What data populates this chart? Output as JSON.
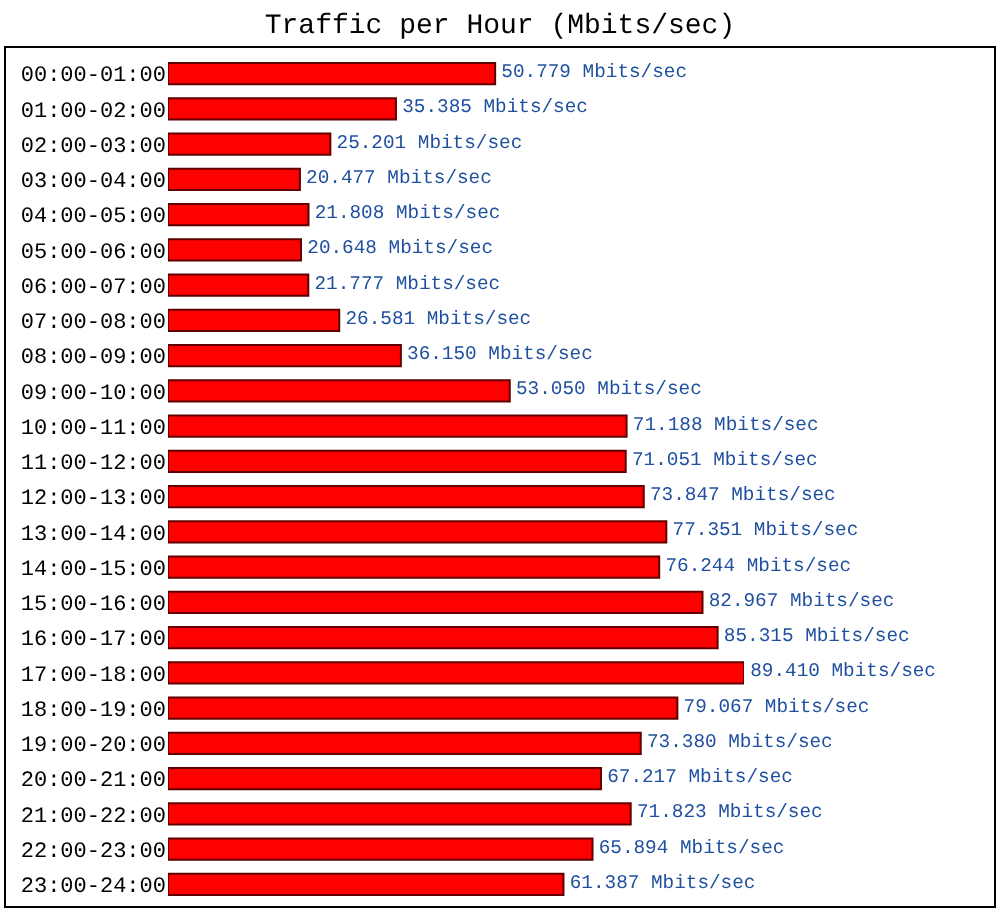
{
  "chart_data": {
    "type": "bar",
    "orientation": "horizontal",
    "title": "Traffic per Hour (Mbits/sec)",
    "tick_labels": "y",
    "grid": false,
    "legend": false,
    "categories": [
      "00:00-01:00",
      "01:00-02:00",
      "02:00-03:00",
      "03:00-04:00",
      "04:00-05:00",
      "05:00-06:00",
      "06:00-07:00",
      "07:00-08:00",
      "08:00-09:00",
      "09:00-10:00",
      "10:00-11:00",
      "11:00-12:00",
      "12:00-13:00",
      "13:00-14:00",
      "14:00-15:00",
      "15:00-16:00",
      "16:00-17:00",
      "17:00-18:00",
      "18:00-19:00",
      "19:00-20:00",
      "20:00-21:00",
      "21:00-22:00",
      "22:00-23:00",
      "23:00-24:00"
    ],
    "values": [
      50.779,
      35.385,
      25.201,
      20.477,
      21.808,
      20.648,
      21.777,
      26.581,
      36.15,
      53.05,
      71.188,
      71.051,
      73.847,
      77.351,
      76.244,
      82.967,
      85.315,
      89.41,
      79.067,
      73.38,
      67.217,
      71.823,
      65.894,
      61.387
    ],
    "value_labels": [
      "50.779 Mbits/sec",
      "35.385 Mbits/sec",
      "25.201 Mbits/sec",
      "20.477 Mbits/sec",
      "21.808 Mbits/sec",
      "20.648 Mbits/sec",
      "21.777 Mbits/sec",
      "26.581 Mbits/sec",
      "36.150 Mbits/sec",
      "53.050 Mbits/sec",
      "71.188 Mbits/sec",
      "71.051 Mbits/sec",
      "73.847 Mbits/sec",
      "77.351 Mbits/sec",
      "76.244 Mbits/sec",
      "82.967 Mbits/sec",
      "85.315 Mbits/sec",
      "89.410 Mbits/sec",
      "79.067 Mbits/sec",
      "73.380 Mbits/sec",
      "67.217 Mbits/sec",
      "71.823 Mbits/sec",
      "65.894 Mbits/sec",
      "61.387 Mbits/sec"
    ],
    "color": "#ff0000"
  }
}
